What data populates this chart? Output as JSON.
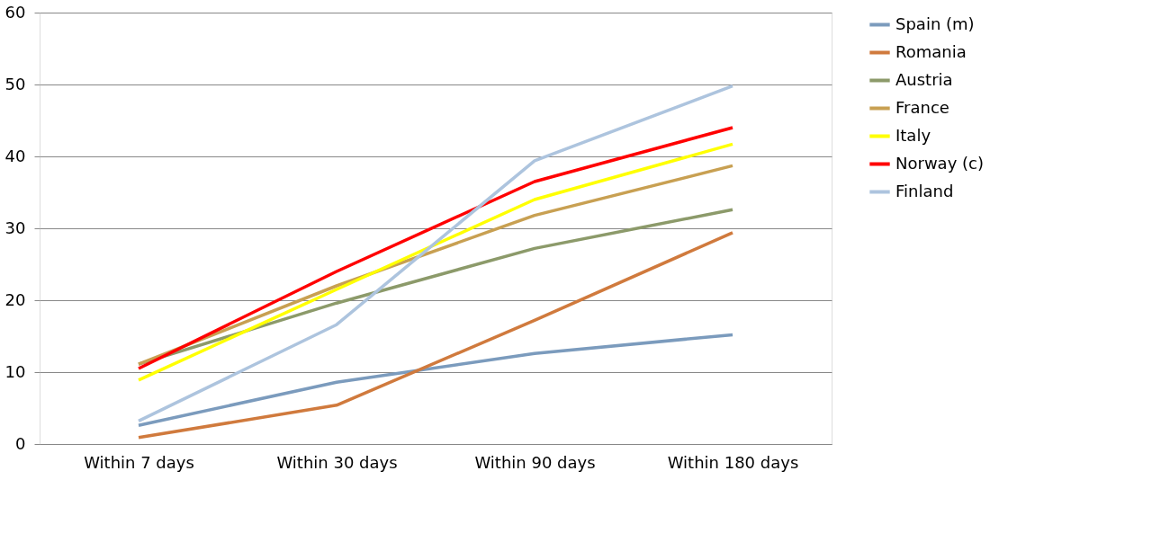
{
  "chart_data": {
    "type": "line",
    "categories": [
      "Within 7 days",
      "Within 30 days",
      "Within 90 days",
      "Within 180 days"
    ],
    "series": [
      {
        "name": "Spain (m)",
        "color": "#7b9bbd",
        "values": [
          2.6,
          8.6,
          12.6,
          15.2
        ]
      },
      {
        "name": "Romania",
        "color": "#d07a3d",
        "values": [
          0.9,
          5.4,
          17.2,
          29.4
        ]
      },
      {
        "name": "Austria",
        "color": "#8c9a6a",
        "values": [
          11.1,
          19.6,
          27.2,
          32.6
        ]
      },
      {
        "name": "France",
        "color": "#c8a052",
        "values": [
          11.1,
          22.0,
          31.8,
          38.7
        ]
      },
      {
        "name": "Italy",
        "color": "#ffff00",
        "values": [
          8.9,
          21.5,
          34.0,
          41.7
        ]
      },
      {
        "name": "Norway (c)",
        "color": "#ff0000",
        "values": [
          10.5,
          24.0,
          36.5,
          44.0
        ]
      },
      {
        "name": "Finland",
        "color": "#adc4de",
        "values": [
          3.2,
          16.6,
          39.4,
          49.8
        ]
      }
    ],
    "ylim": [
      0,
      60
    ],
    "yticks": [
      0,
      10,
      20,
      30,
      40,
      50,
      60
    ],
    "grid": "y",
    "legend": "right",
    "marker": "none",
    "line_style": "solid"
  }
}
